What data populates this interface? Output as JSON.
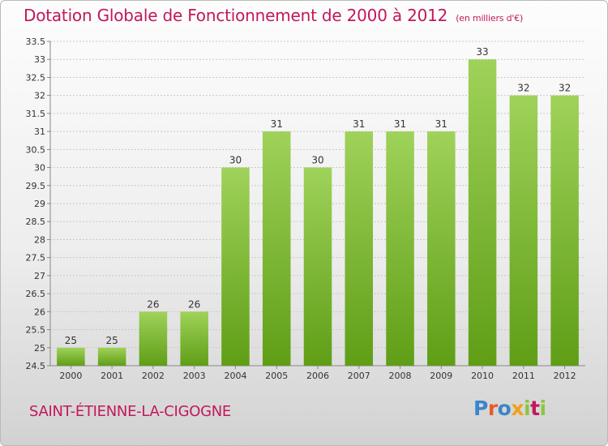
{
  "header": {
    "title": "Dotation Globale de Fonctionnement de 2000 à 2012",
    "unit": "(en milliers d'€)"
  },
  "commune": "SAINT-ÉTIENNE-LA-CIGOGNE",
  "logo": {
    "text": "Proxiti",
    "letters": [
      "P",
      "r",
      "o",
      "x",
      "i",
      "t",
      "i"
    ],
    "colors": [
      "#3a86c8",
      "#e65c2a",
      "#3a86c8",
      "#f2a11a",
      "#8cc63f",
      "#c2185b",
      "#8cc63f"
    ]
  },
  "colors": {
    "title": "#c2185b",
    "bar_top": "#9fd25a",
    "bar_bottom": "#5f9e16",
    "grid": "#c8c8c8",
    "axis_text": "#333333"
  },
  "chart_data": {
    "type": "bar",
    "categories": [
      "2000",
      "2001",
      "2002",
      "2003",
      "2004",
      "2005",
      "2006",
      "2007",
      "2008",
      "2009",
      "2010",
      "2011",
      "2012"
    ],
    "values": [
      25,
      25,
      26,
      26,
      30,
      31,
      30,
      31,
      31,
      31,
      33,
      32,
      32
    ],
    "data_labels": [
      "25",
      "25",
      "26",
      "26",
      "30",
      "31",
      "30",
      "31",
      "31",
      "31",
      "33",
      "32",
      "32"
    ],
    "title": "Dotation Globale de Fonctionnement de 2000 à 2012",
    "ylim": [
      24.5,
      33.5
    ],
    "yticks": [
      "24.5",
      "25",
      "25.5",
      "26",
      "26.5",
      "27",
      "27.5",
      "28",
      "28.5",
      "29",
      "29.5",
      "30",
      "30.5",
      "31",
      "31.5",
      "32",
      "32.5",
      "33",
      "33.5"
    ],
    "grid": true,
    "legend": "none"
  }
}
